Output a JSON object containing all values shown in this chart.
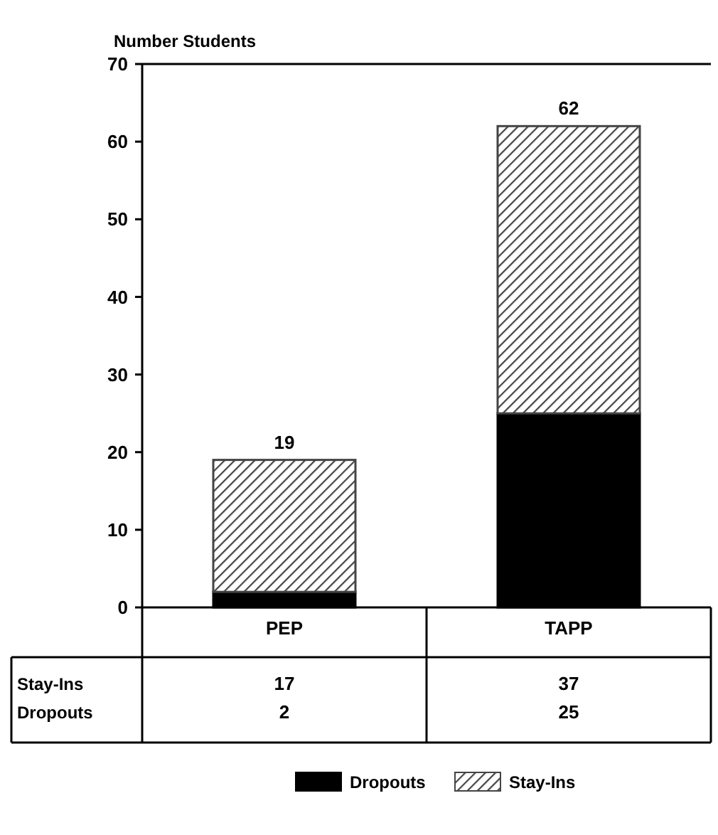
{
  "chart_data": {
    "type": "bar",
    "stacked": true,
    "ylabel": "Number Students",
    "categories": [
      "PEP",
      "TAPP"
    ],
    "series": [
      {
        "name": "Dropouts",
        "color": "#000000",
        "values": [
          2,
          25
        ]
      },
      {
        "name": "Stay-Ins",
        "color": "#444444",
        "values": [
          17,
          37
        ]
      }
    ],
    "totals": [
      "19",
      "62"
    ],
    "data_labels": true,
    "ylim": [
      0,
      70
    ],
    "yticks": [
      0,
      10,
      20,
      30,
      40,
      50,
      60,
      70
    ],
    "grid": false,
    "legend": "bottom"
  }
}
